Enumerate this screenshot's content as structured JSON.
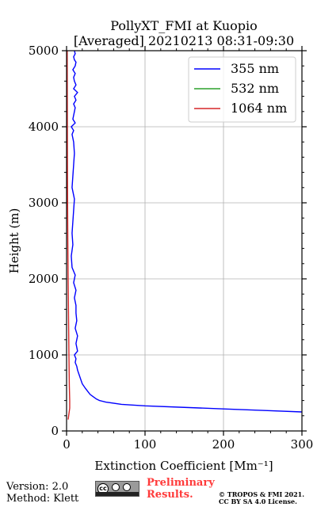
{
  "chart_data": {
    "type": "line",
    "title": "PollyXT_FMI at Kuopio",
    "subtitle": "[Averaged] 20210213 08:31-09:30",
    "xlabel": "Extinction Coefficient [Mm⁻¹]",
    "ylabel": "Height (m)",
    "xlim": [
      0,
      300
    ],
    "ylim": [
      0,
      5000
    ],
    "xticks": [
      0,
      100,
      200,
      300
    ],
    "yticks": [
      0,
      1000,
      2000,
      3000,
      4000,
      5000
    ],
    "grid": true,
    "legend_position": "top-right",
    "series": [
      {
        "name": "355 nm",
        "color": "#0000ff",
        "x": [
          300,
          250,
          200,
          150,
          100,
          70,
          50,
          42,
          38,
          34,
          30,
          27,
          24,
          20,
          18,
          16,
          14,
          13,
          11,
          12,
          10,
          14,
          12,
          14,
          11,
          13,
          12,
          12,
          10,
          12,
          9,
          11,
          7,
          6,
          8,
          7,
          8,
          9,
          10,
          7,
          8,
          9,
          10,
          9,
          8,
          7,
          9,
          6,
          11,
          8,
          9,
          10,
          11,
          9,
          12,
          10,
          14,
          9,
          12,
          10,
          9,
          11,
          8,
          11,
          12,
          10,
          9,
          11,
          10
        ],
        "y": [
          250,
          270,
          290,
          310,
          330,
          350,
          380,
          400,
          420,
          450,
          480,
          520,
          560,
          620,
          680,
          740,
          800,
          850,
          900,
          950,
          1000,
          1050,
          1150,
          1250,
          1350,
          1450,
          1550,
          1650,
          1750,
          1850,
          1950,
          2050,
          2150,
          2300,
          2450,
          2600,
          2750,
          2900,
          3050,
          3200,
          3350,
          3500,
          3650,
          3800,
          3850,
          3900,
          3950,
          4000,
          4050,
          4100,
          4150,
          4200,
          4250,
          4300,
          4350,
          4400,
          4450,
          4500,
          4550,
          4600,
          4650,
          4700,
          4750,
          4800,
          4850,
          4880,
          4920,
          4960,
          5000
        ]
      },
      {
        "name": "532 nm",
        "color": "#2ca02c",
        "x": [],
        "y": []
      },
      {
        "name": "1064 nm",
        "color": "#d62728",
        "x": [
          2,
          4,
          4,
          3.5,
          3,
          2.5,
          2,
          1.6,
          1.3,
          1.1,
          1.0,
          0.9,
          0.8
        ],
        "y": [
          150,
          300,
          400,
          600,
          1000,
          1500,
          2000,
          2500,
          3000,
          3500,
          4000,
          4500,
          5000
        ]
      }
    ]
  },
  "footer": {
    "version": "Version: 2.0",
    "method": "Method: Klett",
    "preliminary_line1": "Preliminary",
    "preliminary_line2": "Results.",
    "copyright_line1": "© TROPOS & FMI 2021.",
    "copyright_line2": "CC BY SA 4.0 License."
  }
}
